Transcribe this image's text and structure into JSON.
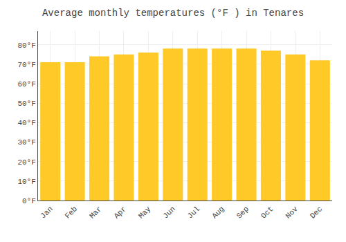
{
  "chart_data": {
    "type": "bar",
    "title": "Average monthly temperatures (°F ) in Tenares",
    "categories": [
      "Jan",
      "Feb",
      "Mar",
      "Apr",
      "May",
      "Jun",
      "Jul",
      "Aug",
      "Sep",
      "Oct",
      "Nov",
      "Dec"
    ],
    "values": [
      71,
      71,
      74,
      75,
      76,
      78,
      78,
      78,
      78,
      77,
      75,
      72
    ],
    "color": "#FFCA28",
    "ylim": [
      0,
      87
    ],
    "yticks": [
      {
        "value": 0,
        "label": "0°F"
      },
      {
        "value": 10,
        "label": "10°F"
      },
      {
        "value": 20,
        "label": "20°F"
      },
      {
        "value": 30,
        "label": "30°F"
      },
      {
        "value": 40,
        "label": "40°F"
      },
      {
        "value": 50,
        "label": "50°F"
      },
      {
        "value": 60,
        "label": "60°F"
      },
      {
        "value": 70,
        "label": "70°F"
      },
      {
        "value": 80,
        "label": "80°F"
      }
    ],
    "grid": true
  }
}
